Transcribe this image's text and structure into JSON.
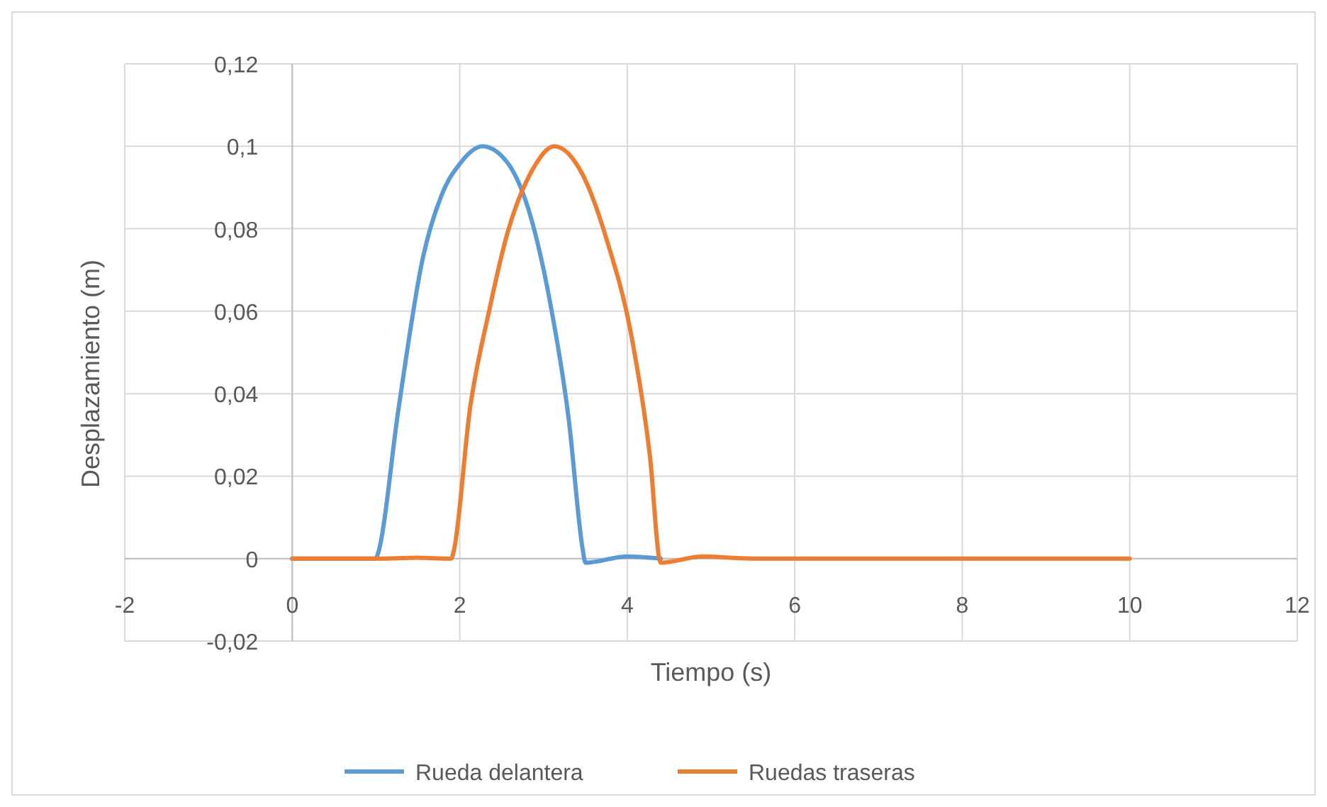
{
  "chart_data": {
    "type": "line",
    "xlabel": "Tiempo (s)",
    "ylabel": "Desplazamiento (m)",
    "xlim": [
      -2,
      12
    ],
    "xticks": [
      -2,
      0,
      2,
      4,
      6,
      8,
      10,
      12
    ],
    "ylim": [
      -0.02,
      0.12
    ],
    "yticks": [
      {
        "value": -0.02,
        "label": "-0,02"
      },
      {
        "value": 0,
        "label": "0"
      },
      {
        "value": 0.02,
        "label": "0,02"
      },
      {
        "value": 0.04,
        "label": "0,04"
      },
      {
        "value": 0.06,
        "label": "0,06"
      },
      {
        "value": 0.08,
        "label": "0,08"
      },
      {
        "value": 0.1,
        "label": "0,1"
      },
      {
        "value": 0.12,
        "label": "0,12"
      }
    ],
    "grid": true,
    "legend": "bottom",
    "marker": "none",
    "line_style": "solid",
    "series": [
      {
        "name": "Rueda delantera",
        "color": "#5b9bd5",
        "x": [
          0,
          0.5,
          1.0,
          1.02,
          1.27,
          1.56,
          1.78,
          2.01,
          2.27,
          2.57,
          2.86,
          3.08,
          3.3,
          3.47,
          3.5,
          4.0,
          4.4
        ],
        "values": [
          0,
          0,
          0,
          0.001,
          0.0365,
          0.073,
          0.088,
          0.096,
          0.1,
          0.096,
          0.082,
          0.062,
          0.034,
          0.002,
          -0.001,
          0.0005,
          0
        ]
      },
      {
        "name": "Ruedas traseras",
        "color": "#ed7d31",
        "x": [
          0,
          1.0,
          1.5,
          1.9,
          1.93,
          2.12,
          2.35,
          2.57,
          2.86,
          3.13,
          3.47,
          3.76,
          4.05,
          4.27,
          4.4,
          4.9,
          5.5,
          6,
          8,
          10
        ],
        "values": [
          0,
          0,
          0.0002,
          0,
          0.002,
          0.036,
          0.06,
          0.079,
          0.094,
          0.1,
          0.093,
          0.077,
          0.054,
          0.025,
          -0.001,
          0.0005,
          0,
          0,
          0,
          0
        ]
      }
    ]
  }
}
